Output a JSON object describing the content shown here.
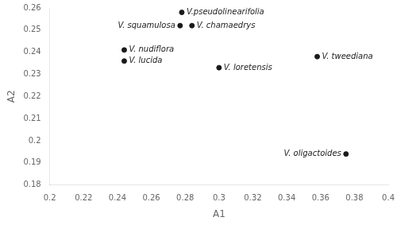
{
  "chart_data": {
    "type": "scatter",
    "x": [
      0.278,
      0.284,
      0.277,
      0.244,
      0.244,
      0.3,
      0.358,
      0.375
    ],
    "values": [
      0.258,
      0.252,
      0.252,
      0.241,
      0.236,
      0.233,
      0.238,
      0.194
    ],
    "labels": [
      "V.pseudolinearifolia",
      "V. chamaedrys",
      "V. squamulosa",
      "V. nudiflora",
      "V. lucida",
      "V. loretensis",
      "V. tweediana",
      "V. oligactoides"
    ],
    "color": "#1a1a1a",
    "xlabel": "A1",
    "ylabel": "A2",
    "xlim": [
      0.2,
      0.4
    ],
    "ylim": [
      0.18,
      0.26
    ],
    "xticks": [
      0.2,
      0.22,
      0.24,
      0.26,
      0.28,
      0.3,
      0.32,
      0.34,
      0.36,
      0.38,
      0.4
    ],
    "yticks": [
      0.18,
      0.19,
      0.2,
      0.21,
      0.22,
      0.23,
      0.24,
      0.25,
      0.26
    ],
    "grid": false
  }
}
